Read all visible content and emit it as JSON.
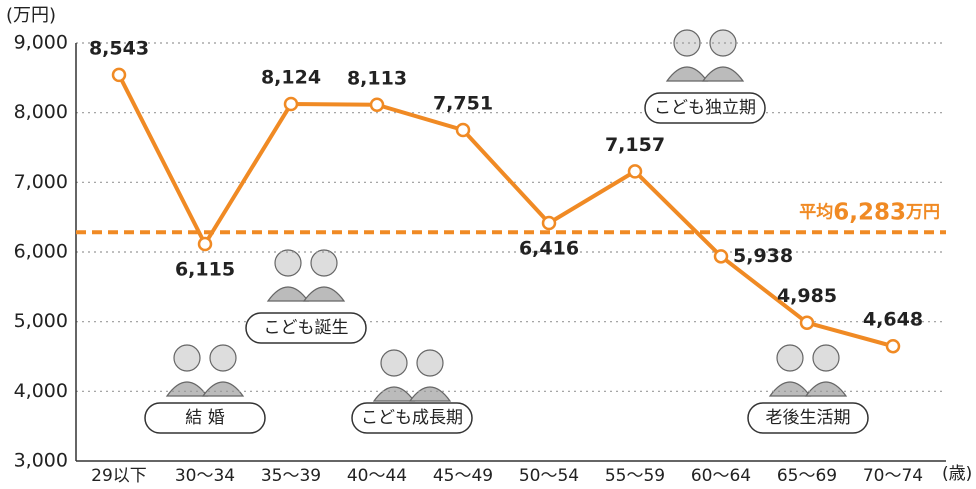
{
  "chart_data": {
    "type": "line",
    "y_label": "(万円)",
    "x_label": "(歳)",
    "categories": [
      "29以下",
      "30〜34",
      "35〜39",
      "40〜44",
      "45〜49",
      "50〜54",
      "55〜59",
      "60〜64",
      "65〜69",
      "70〜74"
    ],
    "values": [
      8543,
      6115,
      8124,
      8113,
      7751,
      6416,
      7157,
      5938,
      4985,
      4648
    ],
    "value_labels": [
      "8,543",
      "6,115",
      "8,124",
      "8,113",
      "7,751",
      "6,416",
      "7,157",
      "5,938",
      "4,985",
      "4,648"
    ],
    "color": "#f08a24",
    "ylim": [
      3000,
      9000
    ],
    "yticks": [
      {
        "value": 3000,
        "label": "3,000"
      },
      {
        "value": 4000,
        "label": "4,000"
      },
      {
        "value": 5000,
        "label": "5,000"
      },
      {
        "value": 6000,
        "label": "6,000"
      },
      {
        "value": 7000,
        "label": "7,000"
      },
      {
        "value": 8000,
        "label": "8,000"
      },
      {
        "value": 9000,
        "label": "9,000"
      }
    ],
    "grid": true,
    "average": {
      "value": 6283,
      "label": "6,283"
    },
    "average_prefix": "平均",
    "average_suffix": "万円",
    "annotations": [
      "結 婚",
      "こども誕生",
      "こども成長期",
      "こども独立期",
      "老後生活期"
    ]
  }
}
